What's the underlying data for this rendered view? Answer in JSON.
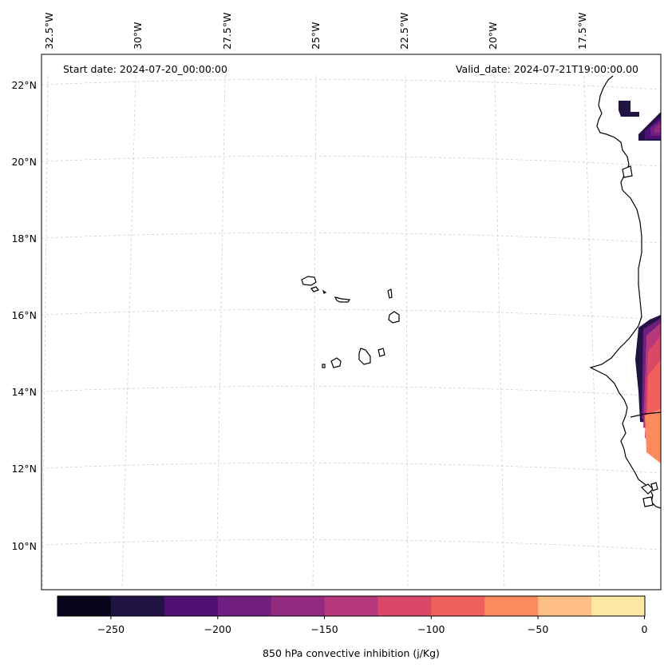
{
  "map": {
    "start_date": "Start date: 2024-07-20_00:00:00",
    "valid_date": "Valid_date: 2024-07-21T19:00:00.00",
    "lon_labels": [
      "32.5°W",
      "30°W",
      "27.5°W",
      "25°W",
      "22.5°W",
      "20°W",
      "17.5°W"
    ],
    "lat_labels": [
      "22°N",
      "20°N",
      "18°N",
      "16°N",
      "14°N",
      "12°N",
      "10°N"
    ]
  },
  "colorbar": {
    "label": "850 hPa convective inhibition (j/Kg)",
    "ticks": [
      "−250",
      "−200",
      "−150",
      "−100",
      "−50",
      "0"
    ],
    "colors": [
      "#07061c",
      "#211343",
      "#4f0f74",
      "#701e80",
      "#912b80",
      "#b6377a",
      "#da4868",
      "#f0605d",
      "#fb8b5f",
      "#febf84",
      "#fde7a5"
    ]
  }
}
